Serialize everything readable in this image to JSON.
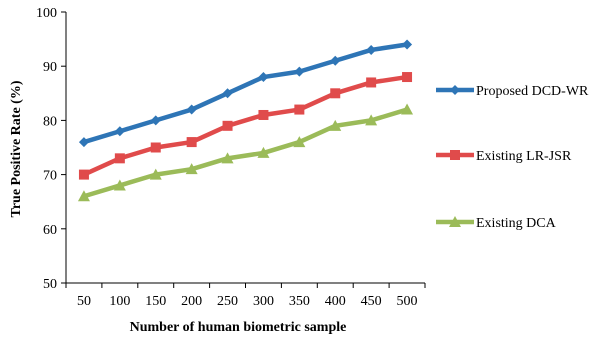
{
  "chart_data": {
    "type": "line",
    "x": [
      50,
      100,
      150,
      200,
      250,
      300,
      350,
      400,
      450,
      500
    ],
    "series": [
      {
        "name": "Proposed DCD-WR",
        "values": [
          76,
          78,
          80,
          82,
          85,
          88,
          89,
          91,
          93,
          94
        ],
        "color": "#2E75B6",
        "marker": "diamond"
      },
      {
        "name": "Existing LR-JSR",
        "values": [
          70,
          73,
          75,
          76,
          79,
          81,
          82,
          85,
          87,
          88
        ],
        "color": "#E04B4B",
        "marker": "square"
      },
      {
        "name": "Existing DCA",
        "values": [
          66,
          68,
          70,
          71,
          73,
          74,
          76,
          79,
          80,
          82
        ],
        "color": "#9BBB59",
        "marker": "triangle"
      }
    ],
    "xlabel": "Number of human biometric sample",
    "ylabel": "True Positive Rate (%)",
    "ylim": [
      50,
      100
    ],
    "yticks": [
      50,
      60,
      70,
      80,
      90,
      100
    ],
    "grid": false,
    "legend_position": "right"
  }
}
